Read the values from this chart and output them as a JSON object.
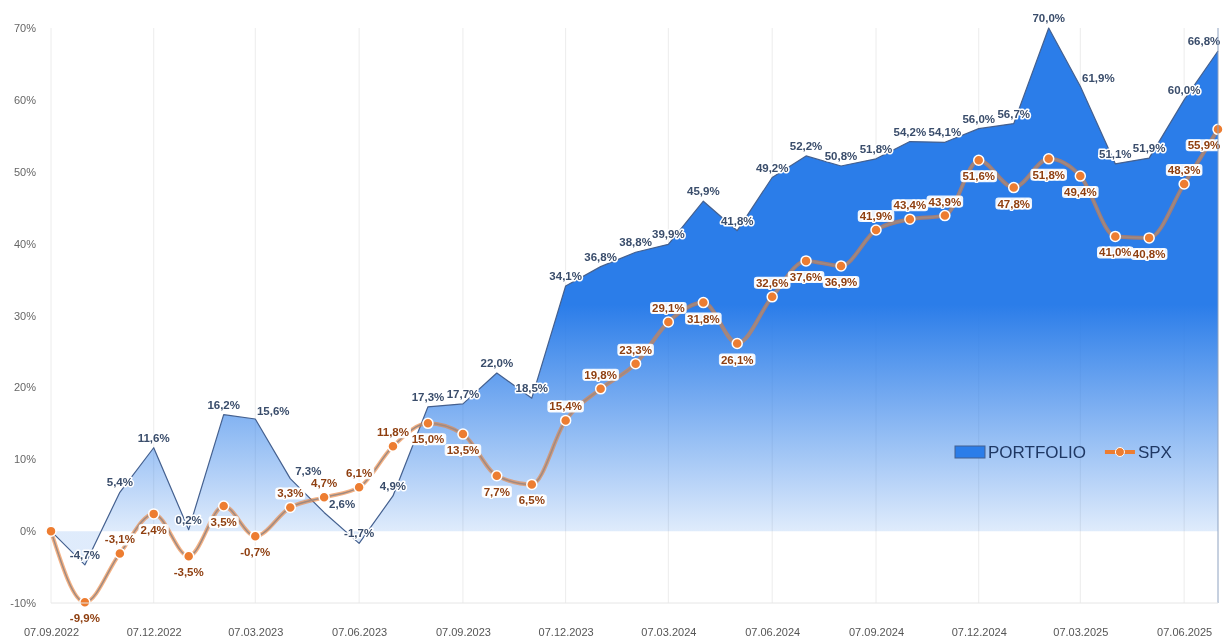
{
  "chart_data": {
    "type": "area",
    "x": [
      "2022-09-07",
      "2022-10-07",
      "2022-11-07",
      "2022-12-07",
      "2023-01-07",
      "2023-02-07",
      "2023-03-07",
      "2023-04-07",
      "2023-05-07",
      "2023-06-07",
      "2023-07-07",
      "2023-08-07",
      "2023-09-07",
      "2023-10-07",
      "2023-11-07",
      "2023-12-07",
      "2024-01-07",
      "2024-02-07",
      "2024-03-07",
      "2024-04-07",
      "2024-05-07",
      "2024-06-07",
      "2024-07-07",
      "2024-08-07",
      "2024-09-07",
      "2024-10-07",
      "2024-11-07",
      "2024-12-07",
      "2025-01-07",
      "2025-02-07",
      "2025-03-07",
      "2025-04-07",
      "2025-05-07",
      "2025-06-07",
      "2025-07-07"
    ],
    "series": [
      {
        "name": "PORTFOLIO",
        "color": "#2b7de9",
        "values": [
          0,
          -4.7,
          5.4,
          11.6,
          0.2,
          16.2,
          15.6,
          7.3,
          2.6,
          -1.7,
          4.9,
          17.3,
          17.7,
          22.0,
          18.5,
          34.1,
          36.8,
          38.8,
          39.9,
          45.9,
          41.8,
          49.2,
          52.2,
          50.8,
          51.8,
          54.2,
          54.1,
          56.0,
          56.7,
          70.0,
          61.9,
          51.1,
          51.9,
          60.0,
          66.8
        ],
        "value_labels": [
          null,
          "-4,7%",
          "5,4%",
          "11,6%",
          "0,2%",
          "16,2%",
          "15,6%",
          "7,3%",
          "2,6%",
          "-1,7%",
          "4,9%",
          "17,3%",
          "17,7%",
          "22,0%",
          "18,5%",
          "34,1%",
          "36,8%",
          "38,8%",
          "39,9%",
          "45,9%",
          "41,8%",
          "49,2%",
          "52,2%",
          "50,8%",
          "51,8%",
          "54,2%",
          "54,1%",
          "56,0%",
          "56,7%",
          "70,0%",
          "61,9%",
          "51,1%",
          "51,9%",
          "60,0%",
          "66,8%"
        ]
      },
      {
        "name": "SPX",
        "type": "line",
        "marker": "circle",
        "color": "#ed7d31",
        "values": [
          0,
          -9.9,
          -3.1,
          2.4,
          -3.5,
          3.5,
          -0.7,
          3.3,
          4.7,
          6.1,
          11.8,
          15.0,
          13.5,
          7.7,
          6.5,
          15.4,
          19.8,
          23.3,
          29.1,
          31.8,
          26.1,
          32.6,
          37.6,
          36.9,
          41.9,
          43.4,
          43.9,
          51.6,
          47.8,
          51.8,
          49.4,
          41.0,
          40.8,
          48.3,
          55.9
        ],
        "value_labels": [
          null,
          "-9,9%",
          "-3,1%",
          "2,4%",
          "-3,5%",
          "3,5%",
          "-0,7%",
          "3,3%",
          "4,7%",
          "6,1%",
          "11,8%",
          "15,0%",
          "13,5%",
          "7,7%",
          "6,5%",
          "15,4%",
          "19,8%",
          "23,3%",
          "29,1%",
          "31,8%",
          "26,1%",
          "32,6%",
          "37,6%",
          "36,9%",
          "41,9%",
          "43,4%",
          "43,9%",
          "51,6%",
          "47,8%",
          "51,8%",
          "49,4%",
          "41,0%",
          "40,8%",
          "48,3%",
          "55,9%"
        ]
      }
    ],
    "xlim": [
      "2022-09-07",
      "2025-07-07"
    ],
    "xticks": [
      {
        "value": "2022-09-07",
        "label": "07.09.2022"
      },
      {
        "value": "2022-12-07",
        "label": "07.12.2022"
      },
      {
        "value": "2023-03-07",
        "label": "07.03.2023"
      },
      {
        "value": "2023-06-07",
        "label": "07.06.2023"
      },
      {
        "value": "2023-09-07",
        "label": "07.09.2023"
      },
      {
        "value": "2023-12-07",
        "label": "07.12.2023"
      },
      {
        "value": "2024-03-07",
        "label": "07.03.2024"
      },
      {
        "value": "2024-06-07",
        "label": "07.06.2024"
      },
      {
        "value": "2024-09-07",
        "label": "07.09.2024"
      },
      {
        "value": "2024-12-07",
        "label": "07.12.2024"
      },
      {
        "value": "2025-03-07",
        "label": "07.03.2025"
      },
      {
        "value": "2025-06-07",
        "label": "07.06.2025"
      }
    ],
    "ylim": [
      -10,
      70
    ],
    "yticks": [
      {
        "value": -10,
        "label": "-10%"
      },
      {
        "value": 0,
        "label": "0%"
      },
      {
        "value": 10,
        "label": "10%"
      },
      {
        "value": 20,
        "label": "20%"
      },
      {
        "value": 30,
        "label": "30%"
      },
      {
        "value": 40,
        "label": "40%"
      },
      {
        "value": 50,
        "label": "50%"
      },
      {
        "value": 60,
        "label": "60%"
      },
      {
        "value": 70,
        "label": "70%"
      }
    ],
    "grid": "x",
    "legend": "bottom right"
  }
}
